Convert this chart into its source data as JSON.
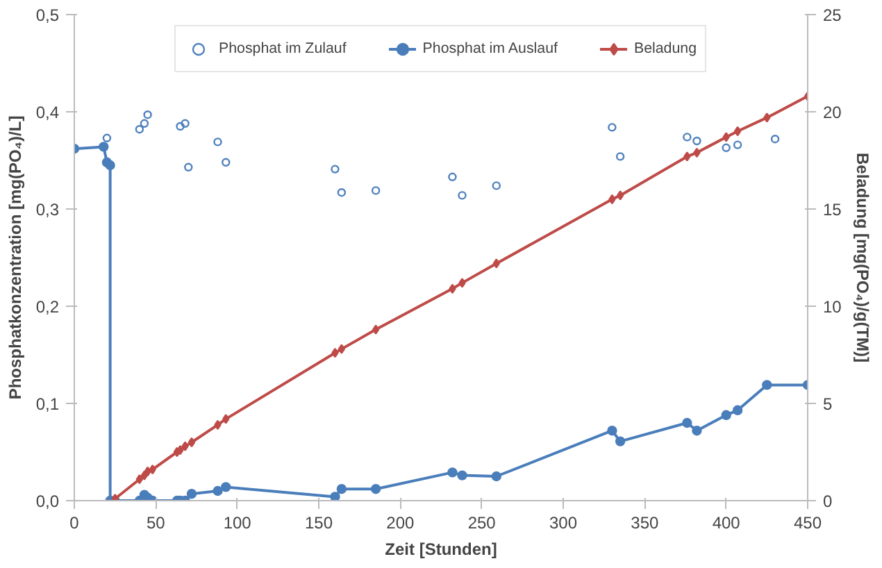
{
  "chart_data": {
    "type": "line",
    "xlabel": "Zeit [Stunden]",
    "ylabel": "Phosphatkonzentration [mg(PO₄)/L]",
    "y2label": "Beladung [mg(PO₄)/g(TM)]",
    "xlim": [
      0,
      450
    ],
    "xticks": [
      0,
      50,
      100,
      150,
      200,
      250,
      300,
      350,
      400,
      450
    ],
    "ylim": [
      0,
      0.5
    ],
    "yticks": [
      {
        "value": 0,
        "label": "0,0"
      },
      {
        "value": 0.1,
        "label": "0,1"
      },
      {
        "value": 0.2,
        "label": "0,2"
      },
      {
        "value": 0.3,
        "label": "0,3"
      },
      {
        "value": 0.4,
        "label": "0,4"
      },
      {
        "value": 0.5,
        "label": "0,5"
      }
    ],
    "y2lim": [
      0,
      25
    ],
    "y2ticks": [
      0,
      5,
      10,
      15,
      20,
      25
    ],
    "grid": false,
    "legend": "top",
    "series": [
      {
        "name": "Phosphat im Zulauf",
        "type": "scatter",
        "marker": "circle",
        "color": "#4f81bd",
        "x": [
          20,
          40,
          43,
          45,
          65,
          68,
          70,
          88,
          93,
          160,
          164,
          185,
          232,
          238,
          259,
          330,
          335,
          376,
          382,
          400,
          407,
          430
        ],
        "values": [
          0.373,
          0.382,
          0.388,
          0.397,
          0.385,
          0.388,
          0.343,
          0.369,
          0.348,
          0.341,
          0.317,
          0.319,
          0.333,
          0.314,
          0.324,
          0.384,
          0.354,
          0.374,
          0.37,
          0.363,
          0.366,
          0.372
        ]
      },
      {
        "name": "Phosphat im Auslauf",
        "marker": "circle",
        "color": "#4a7ebb",
        "x": [
          0,
          18,
          20,
          22,
          22,
          25,
          40,
          43,
          45,
          48,
          63,
          65,
          68,
          72,
          88,
          93,
          160,
          164,
          185,
          232,
          238,
          259,
          330,
          335,
          376,
          382,
          400,
          407,
          425,
          450
        ],
        "values": [
          0.362,
          0.364,
          0.348,
          0.345,
          0,
          0,
          0,
          0.006,
          0.003,
          0,
          0,
          0,
          0,
          0.007,
          0.01,
          0.014,
          0.004,
          0.012,
          0.012,
          0.029,
          0.026,
          0.025,
          0.072,
          0.061,
          0.08,
          0.072,
          0.088,
          0.093,
          0.119,
          0.119
        ]
      },
      {
        "name": "Beladung",
        "marker": "diamond",
        "axis": "y2",
        "color": "#be4b48",
        "x": [
          25,
          40,
          43,
          45,
          48,
          63,
          65,
          68,
          72,
          88,
          93,
          160,
          164,
          185,
          232,
          238,
          259,
          330,
          335,
          376,
          382,
          400,
          407,
          425,
          450
        ],
        "values": [
          0.1,
          1.1,
          1.3,
          1.5,
          1.6,
          2.5,
          2.6,
          2.8,
          3.0,
          3.9,
          4.2,
          7.6,
          7.8,
          8.8,
          10.9,
          11.2,
          12.2,
          15.5,
          15.7,
          17.7,
          17.9,
          18.7,
          19.0,
          19.7,
          20.8
        ]
      }
    ]
  }
}
